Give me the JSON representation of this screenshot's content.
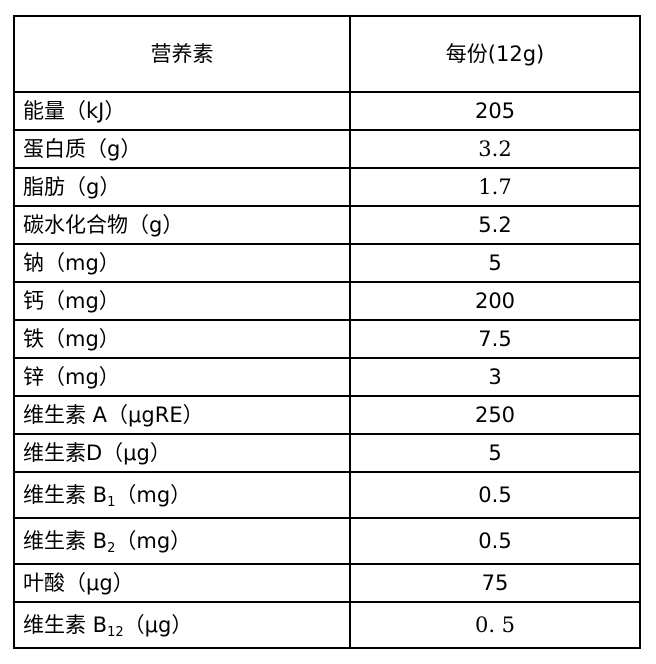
{
  "table": {
    "headers": [
      "营养素",
      "每份(12g)"
    ],
    "rows": [
      {
        "name": "能量（kJ）",
        "value": "205"
      },
      {
        "name": "蛋白质（g）",
        "value": "3.2"
      },
      {
        "name": "脂肪（g）",
        "value": "1.7"
      },
      {
        "name": "碳水化合物（g）",
        "value": "5.2"
      },
      {
        "name": "钠（mg）",
        "value": "5"
      },
      {
        "name": "钙（mg）",
        "value": "200"
      },
      {
        "name": "铁（mg）",
        "value": "7.5"
      },
      {
        "name": "锌（mg）",
        "value": "3"
      },
      {
        "name": "维生素 A（μgRE）",
        "value": "250"
      },
      {
        "name": "维生素D（μg）",
        "value": "5"
      },
      {
        "name_pre": "维生素 B",
        "name_sub": "1",
        "name_post": "（mg）",
        "value": "0.5"
      },
      {
        "name_pre": "维生素 B",
        "name_sub": "2",
        "name_post": "（mg）",
        "value": "0.5"
      },
      {
        "name": "叶酸（μg）",
        "value": "75"
      },
      {
        "name_pre": "维生素 B",
        "name_sub": "12",
        "name_post": "（μg）",
        "value": "0. 5"
      }
    ]
  }
}
